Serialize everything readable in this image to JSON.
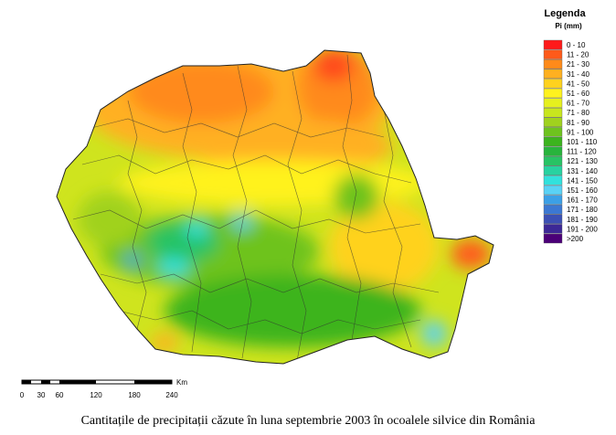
{
  "legend": {
    "title": "Legenda",
    "unit": "Pi (mm)",
    "items": [
      {
        "label": "0 - 10",
        "color": "#ff1a1a"
      },
      {
        "label": "11 - 20",
        "color": "#ff5a1a"
      },
      {
        "label": "21 - 30",
        "color": "#ff8a1a"
      },
      {
        "label": "31 - 40",
        "color": "#ffb020"
      },
      {
        "label": "41 - 50",
        "color": "#ffd21e"
      },
      {
        "label": "51 - 60",
        "color": "#fff21e"
      },
      {
        "label": "61 - 70",
        "color": "#e6f01e"
      },
      {
        "label": "71 - 80",
        "color": "#c8e61e"
      },
      {
        "label": "81 - 90",
        "color": "#a0d21e"
      },
      {
        "label": "91 - 100",
        "color": "#6ec31e"
      },
      {
        "label": "101 - 110",
        "color": "#3cb41e"
      },
      {
        "label": "111 - 120",
        "color": "#28b43c"
      },
      {
        "label": "121 - 130",
        "color": "#28c364"
      },
      {
        "label": "131 - 140",
        "color": "#28d2a0"
      },
      {
        "label": "141 - 150",
        "color": "#32e1dc"
      },
      {
        "label": "151 - 160",
        "color": "#5ad2f5"
      },
      {
        "label": "161 - 170",
        "color": "#3ca0e6"
      },
      {
        "label": "171 - 180",
        "color": "#3c78d2"
      },
      {
        "label": "181 - 190",
        "color": "#3c50b4"
      },
      {
        "label": "191 - 200",
        "color": "#3c2896"
      },
      {
        "label": ">200",
        "color": "#4b0078"
      }
    ]
  },
  "scale_bar": {
    "labels": [
      "0",
      "30",
      "60",
      "120",
      "180",
      "240"
    ],
    "unit": "Km"
  },
  "caption": "Cantitațile de precipitații căzute în luna septembrie 2003 în ocoalele silvice din România"
}
